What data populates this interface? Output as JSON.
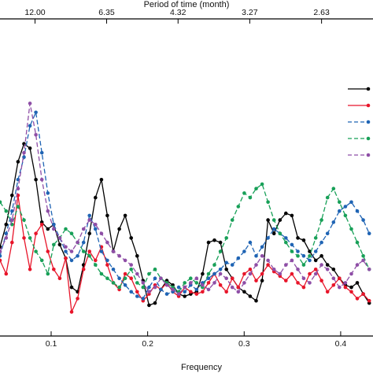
{
  "chart_data": {
    "type": "line",
    "xlabel": "Frequency",
    "top_axis_label": "Period of time (month)",
    "x_ticks": [
      0.1,
      0.2,
      0.3,
      0.4
    ],
    "x_tick_labels": [
      "0.1",
      "0.2",
      "0.3",
      "0.4"
    ],
    "top_ticks": [
      {
        "freq": 0.0833,
        "label": "12.00"
      },
      {
        "freq": 0.1575,
        "label": "6.35"
      },
      {
        "freq": 0.2315,
        "label": "4.32"
      },
      {
        "freq": 0.3058,
        "label": "3.27"
      },
      {
        "freq": 0.3802,
        "label": "2.63"
      }
    ],
    "xlim": [
      0.047,
      0.4335
    ],
    "ylim": [
      0,
      1
    ],
    "grid": false,
    "legend_position": "right",
    "series": [
      {
        "color": "#000000",
        "dash": "solid",
        "x": [
          0.047,
          0.0534,
          0.0595,
          0.0657,
          0.0719,
          0.0781,
          0.0842,
          0.0904,
          0.0966,
          0.1027,
          0.1089,
          0.1151,
          0.1212,
          0.1274,
          0.1336,
          0.1397,
          0.1459,
          0.1521,
          0.1582,
          0.1644,
          0.1706,
          0.1767,
          0.1829,
          0.1891,
          0.1952,
          0.2014,
          0.2076,
          0.2137,
          0.2199,
          0.2261,
          0.2322,
          0.2384,
          0.2446,
          0.2507,
          0.2569,
          0.2631,
          0.2692,
          0.2754,
          0.2816,
          0.2877,
          0.2939,
          0.3001,
          0.3062,
          0.3124,
          0.3186,
          0.3247,
          0.3309,
          0.3371,
          0.3432,
          0.3494,
          0.3556,
          0.3617,
          0.3679,
          0.3741,
          0.3802,
          0.3864,
          0.3926,
          0.3987,
          0.4049,
          0.4111,
          0.4172,
          0.4234,
          0.4296
        ],
        "y": [
          0.32,
          0.42,
          0.55,
          0.7,
          0.78,
          0.76,
          0.62,
          0.43,
          0.4,
          0.42,
          0.33,
          0.27,
          0.14,
          0.12,
          0.24,
          0.38,
          0.54,
          0.62,
          0.46,
          0.3,
          0.4,
          0.46,
          0.36,
          0.28,
          0.17,
          0.06,
          0.07,
          0.13,
          0.17,
          0.15,
          0.11,
          0.1,
          0.11,
          0.12,
          0.2,
          0.34,
          0.35,
          0.34,
          0.22,
          0.18,
          0.14,
          0.12,
          0.1,
          0.08,
          0.17,
          0.44,
          0.38,
          0.44,
          0.47,
          0.46,
          0.36,
          0.35,
          0.3,
          0.26,
          0.28,
          0.24,
          0.22,
          0.18,
          0.15,
          0.14,
          0.16,
          0.11,
          0.07
        ]
      },
      {
        "color": "#e8152a",
        "dash": "solid",
        "x": [
          0.047,
          0.0534,
          0.0595,
          0.0657,
          0.0719,
          0.0781,
          0.0842,
          0.0904,
          0.0966,
          0.1027,
          0.1089,
          0.1151,
          0.1212,
          0.1274,
          0.1336,
          0.1397,
          0.1459,
          0.1521,
          0.1582,
          0.1644,
          0.1706,
          0.1767,
          0.1829,
          0.1891,
          0.1952,
          0.2014,
          0.2076,
          0.2137,
          0.2199,
          0.2261,
          0.2322,
          0.2384,
          0.2446,
          0.2507,
          0.2569,
          0.2631,
          0.2692,
          0.2754,
          0.2816,
          0.2877,
          0.2939,
          0.3001,
          0.3062,
          0.3124,
          0.3186,
          0.3247,
          0.3309,
          0.3371,
          0.3432,
          0.3494,
          0.3556,
          0.3617,
          0.3679,
          0.3741,
          0.3802,
          0.3864,
          0.3926,
          0.3987,
          0.4049,
          0.4111,
          0.4172,
          0.4234,
          0.4296
        ],
        "y": [
          0.26,
          0.2,
          0.34,
          0.55,
          0.36,
          0.22,
          0.38,
          0.42,
          0.3,
          0.22,
          0.18,
          0.27,
          0.03,
          0.09,
          0.22,
          0.3,
          0.26,
          0.32,
          0.24,
          0.16,
          0.13,
          0.2,
          0.18,
          0.12,
          0.08,
          0.11,
          0.15,
          0.13,
          0.16,
          0.12,
          0.1,
          0.14,
          0.12,
          0.11,
          0.12,
          0.16,
          0.2,
          0.15,
          0.12,
          0.18,
          0.14,
          0.2,
          0.22,
          0.17,
          0.2,
          0.24,
          0.21,
          0.19,
          0.17,
          0.2,
          0.16,
          0.14,
          0.2,
          0.22,
          0.17,
          0.12,
          0.15,
          0.18,
          0.14,
          0.12,
          0.09,
          0.11,
          0.08
        ]
      },
      {
        "color": "#1f64b4",
        "dash": "dashed",
        "x": [
          0.047,
          0.0534,
          0.0595,
          0.0657,
          0.0719,
          0.0781,
          0.0842,
          0.0904,
          0.0966,
          0.1027,
          0.1089,
          0.1151,
          0.1212,
          0.1274,
          0.1336,
          0.1397,
          0.1459,
          0.1521,
          0.1582,
          0.1644,
          0.1706,
          0.1767,
          0.1829,
          0.1891,
          0.1952,
          0.2014,
          0.2076,
          0.2137,
          0.2199,
          0.2261,
          0.2322,
          0.2384,
          0.2446,
          0.2507,
          0.2569,
          0.2631,
          0.2692,
          0.2754,
          0.2816,
          0.2877,
          0.2939,
          0.3001,
          0.3062,
          0.3124,
          0.3186,
          0.3247,
          0.3309,
          0.3371,
          0.3432,
          0.3494,
          0.3556,
          0.3617,
          0.3679,
          0.3741,
          0.3802,
          0.3864,
          0.3926,
          0.3987,
          0.4049,
          0.4111,
          0.4172,
          0.4234,
          0.4296
        ],
        "y": [
          0.28,
          0.38,
          0.48,
          0.62,
          0.72,
          0.86,
          0.92,
          0.74,
          0.56,
          0.42,
          0.36,
          0.3,
          0.26,
          0.28,
          0.34,
          0.46,
          0.4,
          0.3,
          0.26,
          0.22,
          0.18,
          0.15,
          0.12,
          0.1,
          0.09,
          0.14,
          0.18,
          0.13,
          0.11,
          0.12,
          0.14,
          0.12,
          0.15,
          0.13,
          0.16,
          0.18,
          0.2,
          0.22,
          0.25,
          0.24,
          0.27,
          0.3,
          0.34,
          0.28,
          0.32,
          0.36,
          0.4,
          0.38,
          0.36,
          0.33,
          0.3,
          0.28,
          0.26,
          0.3,
          0.34,
          0.38,
          0.43,
          0.48,
          0.5,
          0.52,
          0.48,
          0.44,
          0.38
        ]
      },
      {
        "color": "#18a058",
        "dash": "dashed",
        "x": [
          0.047,
          0.0534,
          0.0595,
          0.0657,
          0.0719,
          0.0781,
          0.0842,
          0.0904,
          0.0966,
          0.1027,
          0.1089,
          0.1151,
          0.1212,
          0.1274,
          0.1336,
          0.1397,
          0.1459,
          0.1521,
          0.1582,
          0.1644,
          0.1706,
          0.1767,
          0.1829,
          0.1891,
          0.1952,
          0.2014,
          0.2076,
          0.2137,
          0.2199,
          0.2261,
          0.2322,
          0.2384,
          0.2446,
          0.2507,
          0.2569,
          0.2631,
          0.2692,
          0.2754,
          0.2816,
          0.2877,
          0.2939,
          0.3001,
          0.3062,
          0.3124,
          0.3186,
          0.3247,
          0.3309,
          0.3371,
          0.3432,
          0.3494,
          0.3556,
          0.3617,
          0.3679,
          0.3741,
          0.3802,
          0.3864,
          0.3926,
          0.3987,
          0.4049,
          0.4111,
          0.4172,
          0.4234,
          0.4296
        ],
        "y": [
          0.52,
          0.48,
          0.42,
          0.5,
          0.44,
          0.36,
          0.3,
          0.26,
          0.2,
          0.33,
          0.36,
          0.4,
          0.38,
          0.34,
          0.3,
          0.28,
          0.24,
          0.2,
          0.18,
          0.16,
          0.14,
          0.18,
          0.22,
          0.16,
          0.14,
          0.2,
          0.22,
          0.18,
          0.16,
          0.14,
          0.12,
          0.16,
          0.18,
          0.16,
          0.14,
          0.2,
          0.24,
          0.3,
          0.36,
          0.44,
          0.5,
          0.56,
          0.54,
          0.58,
          0.6,
          0.52,
          0.44,
          0.38,
          0.34,
          0.3,
          0.28,
          0.24,
          0.28,
          0.36,
          0.44,
          0.54,
          0.58,
          0.52,
          0.46,
          0.4,
          0.34,
          0.28,
          0.22
        ]
      },
      {
        "color": "#8e4ea6",
        "dash": "dashed",
        "x": [
          0.047,
          0.0534,
          0.0595,
          0.0657,
          0.0719,
          0.0781,
          0.0842,
          0.0904,
          0.0966,
          0.1027,
          0.1089,
          0.1151,
          0.1212,
          0.1274,
          0.1336,
          0.1397,
          0.1459,
          0.1521,
          0.1582,
          0.1644,
          0.1706,
          0.1767,
          0.1829,
          0.1891,
          0.1952,
          0.2014,
          0.2076,
          0.2137,
          0.2199,
          0.2261,
          0.2322,
          0.2384,
          0.2446,
          0.2507,
          0.2569,
          0.2631,
          0.2692,
          0.2754,
          0.2816,
          0.2877,
          0.2939,
          0.3001,
          0.3062,
          0.3124,
          0.3186,
          0.3247,
          0.3309,
          0.3371,
          0.3432,
          0.3494,
          0.3556,
          0.3617,
          0.3679,
          0.3741,
          0.3802,
          0.3864,
          0.3926,
          0.3987,
          0.4049,
          0.4111,
          0.4172,
          0.4234,
          0.4296
        ],
        "y": [
          0.3,
          0.36,
          0.44,
          0.58,
          0.74,
          0.96,
          0.82,
          0.62,
          0.48,
          0.4,
          0.36,
          0.32,
          0.3,
          0.34,
          0.4,
          0.44,
          0.42,
          0.38,
          0.34,
          0.3,
          0.28,
          0.26,
          0.24,
          0.2,
          0.16,
          0.12,
          0.14,
          0.18,
          0.15,
          0.13,
          0.11,
          0.14,
          0.16,
          0.18,
          0.15,
          0.13,
          0.16,
          0.2,
          0.18,
          0.14,
          0.12,
          0.16,
          0.2,
          0.24,
          0.28,
          0.26,
          0.22,
          0.2,
          0.24,
          0.26,
          0.22,
          0.18,
          0.16,
          0.2,
          0.24,
          0.22,
          0.18,
          0.14,
          0.16,
          0.2,
          0.24,
          0.26,
          0.22
        ]
      }
    ]
  }
}
